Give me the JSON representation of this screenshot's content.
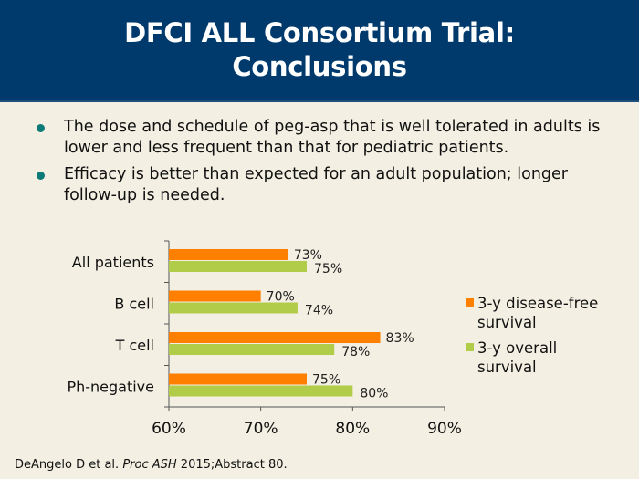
{
  "header": {
    "title_line1": "DFCI ALL Consortium Trial:",
    "title_line2": "Conclusions",
    "background": "#003a6c"
  },
  "bullets": [
    {
      "text": "The dose and schedule of peg-asp that is well tolerated in adults is lower and less frequent than that for pediatric patients."
    },
    {
      "text": "Efficacy is better than expected for an adult population; longer follow-up is needed."
    }
  ],
  "chart_data": {
    "type": "bar",
    "orientation": "horizontal",
    "title": "",
    "xlabel": "",
    "ylabel": "",
    "categories": [
      "All patients",
      "B cell",
      "T cell",
      "Ph-negative"
    ],
    "series": [
      {
        "name": "3-y disease-free survival",
        "color": "#ff7f00",
        "values": [
          73,
          70,
          83,
          75
        ],
        "labels": [
          "73%",
          "70%",
          "83%",
          "75%"
        ]
      },
      {
        "name": "3-y overall survival",
        "color": "#b0cc48",
        "values": [
          75,
          74,
          78,
          80
        ],
        "labels": [
          "75%",
          "74%",
          "78%",
          "80%"
        ]
      }
    ],
    "xlim": [
      60,
      90
    ],
    "xticks": [
      60,
      70,
      80,
      90
    ],
    "xtick_labels": [
      "60%",
      "70%",
      "80%",
      "90%"
    ],
    "grid": false,
    "legend_position": "right"
  },
  "legend": {
    "items": [
      {
        "label_line1": "3-y disease-free",
        "label_line2": "survival",
        "color": "#ff7f00"
      },
      {
        "label_line1": "3-y overall",
        "label_line2": "survival",
        "color": "#b0cc48"
      }
    ]
  },
  "citation": {
    "authors": "DeAngelo D et al.",
    "journal": "Proc ASH",
    "rest": "2015;Abstract 80."
  }
}
